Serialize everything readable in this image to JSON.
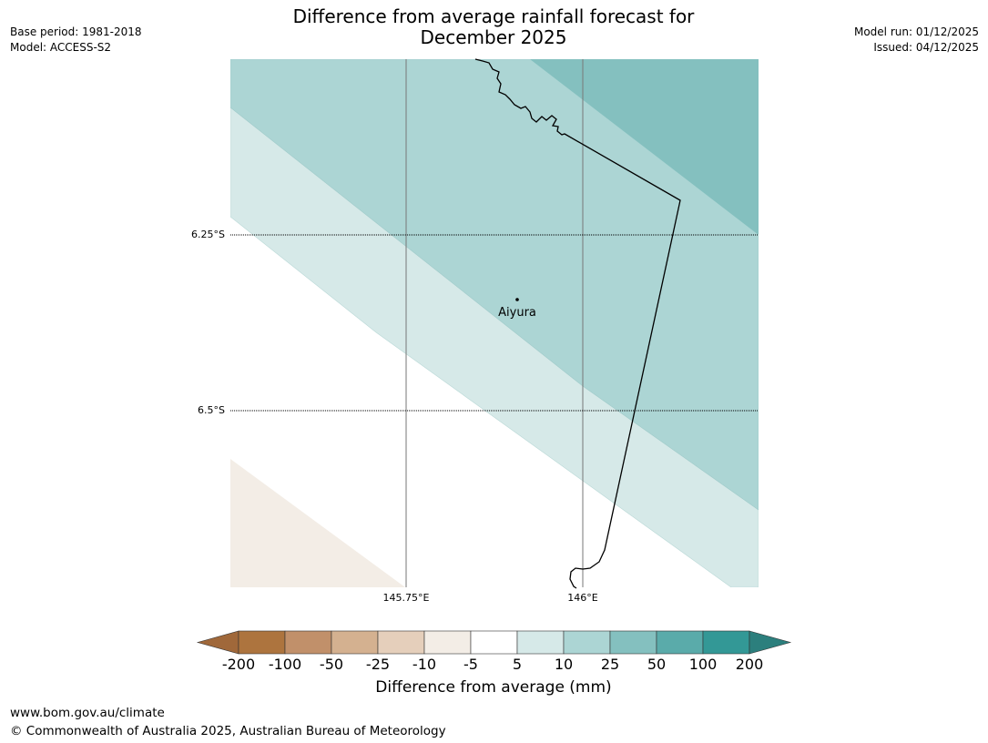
{
  "title_line1": "Difference from average rainfall forecast for",
  "title_line2": "December 2025",
  "meta_left": {
    "base_period": "Base period: 1981-2018",
    "model": "Model: ACCESS-S2"
  },
  "meta_right": {
    "model_run": "Model run: 01/12/2025",
    "issued": "Issued: 04/12/2025"
  },
  "map": {
    "lat_labels": [
      "6.25°S",
      "6.5°S"
    ],
    "lon_labels": [
      "145.75°E",
      "146°E"
    ],
    "place": {
      "name": "Aiyura"
    }
  },
  "colorbar": {
    "ticks": [
      "-200",
      "-100",
      "-50",
      "-25",
      "-10",
      "-5",
      "5",
      "10",
      "25",
      "50",
      "100",
      "200"
    ],
    "colors": [
      "#a0683a",
      "#ad743e",
      "#c1906a",
      "#d4b190",
      "#e5cfbb",
      "#f3ede6",
      "#ffffff",
      "#d6e9e8",
      "#acd5d4",
      "#84c0bf",
      "#5aabaa",
      "#339896",
      "#2c7f7d"
    ],
    "label": "Difference from average (mm)"
  },
  "footer": {
    "url": "www.bom.gov.au/climate",
    "copyright": "© Commonwealth of Australia 2025, Australian Bureau of Meteorology"
  }
}
